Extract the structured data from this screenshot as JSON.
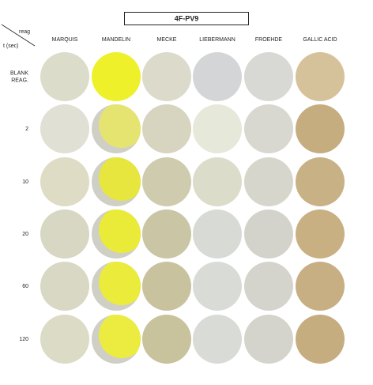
{
  "title": "4F-PV9",
  "corner": {
    "column_header": "reag",
    "row_header": "t (sec)"
  },
  "columns": [
    "MARQUIS",
    "MANDELIN",
    "MECKE",
    "LIEBERMANN",
    "FROEHDE",
    "GALLIC ACID"
  ],
  "rows": [
    [
      "BLANK",
      "REAG."
    ],
    [
      "2"
    ],
    [
      "10"
    ],
    [
      "20"
    ],
    [
      "60"
    ],
    [
      "120"
    ]
  ]
}
